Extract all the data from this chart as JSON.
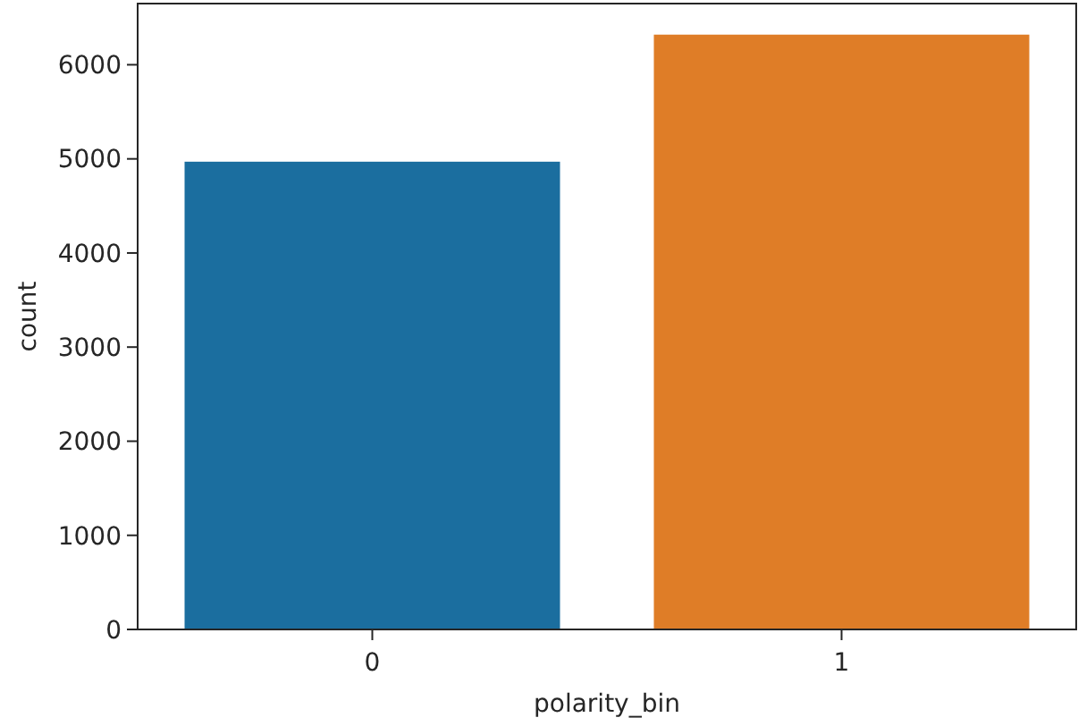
{
  "chart_data": {
    "type": "bar",
    "xlabel": "polarity_bin",
    "ylabel": "count",
    "categories": [
      "0",
      "1"
    ],
    "values": [
      4970,
      6320
    ],
    "colors": [
      "#1b6e9f",
      "#df7d27"
    ],
    "ylim": [
      0,
      6650
    ],
    "yticks": [
      0,
      1000,
      2000,
      3000,
      4000,
      5000,
      6000
    ],
    "grid": false
  }
}
